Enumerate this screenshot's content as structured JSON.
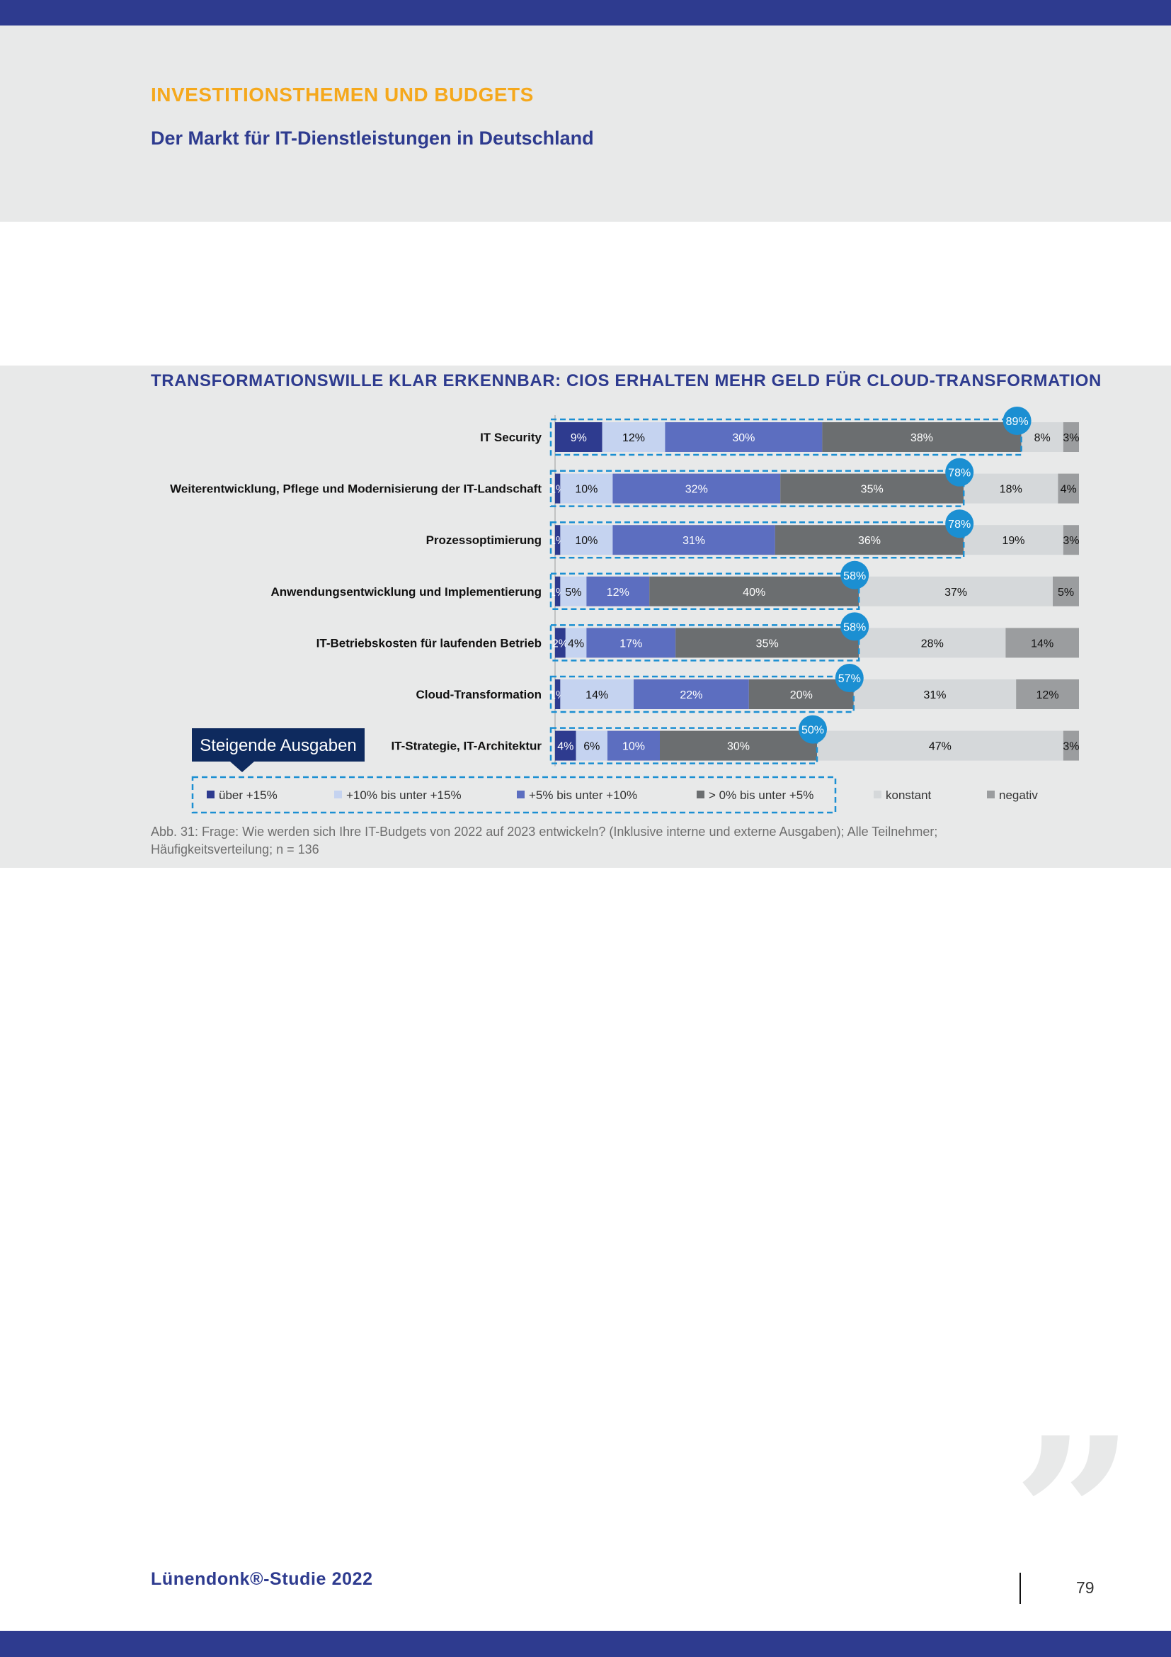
{
  "header": {
    "kicker": "INVESTITIONSTHEMEN UND BUDGETS",
    "subtitle": "Der Markt für IT-Dienstleistungen in Deutschland"
  },
  "figure": {
    "caption": "Abb. 31: Frage: Wie werden sich Ihre IT-Budgets von 2022 auf 2023 entwickeln? (Inklusive interne und externe Ausgaben); Alle Teilnehmer; Häufigkeitsverteilung; n = 136",
    "callout": "Steigende Ausgaben"
  },
  "footer": {
    "brand": "Lünendonk®-Studie 2022",
    "page_number": "79"
  },
  "colors": {
    "brand_blue": "#2e3b8f",
    "accent_orange": "#f5a81c",
    "badge_blue": "#1b8fd2",
    "callout_navy": "#0e2a5e"
  },
  "chart_data": {
    "type": "bar",
    "orientation": "horizontal-stacked-100",
    "title": "TRANSFORMATIONSWILLE KLAR ERKENNBAR: CIOS ERHALTEN MEHR GELD FÜR CLOUD-TRANSFORMATION",
    "categories": [
      "IT Security",
      "Weiterentwicklung, Pflege und Modernisierung der IT-Landschaft",
      "Prozessoptimierung",
      "Anwendungsentwicklung und Implementierung",
      "IT-Betriebskosten für laufenden Betrieb",
      "Cloud-Transformation",
      "IT-Strategie, IT-Architektur"
    ],
    "series": [
      {
        "name": "über +15%",
        "color": "#2e3b8f",
        "text_color": "#ffffff",
        "values": [
          9,
          1,
          1,
          1,
          2,
          1,
          4
        ]
      },
      {
        "name": "+10% bis unter +15%",
        "color": "#c5d3f0",
        "text_color": "#111111",
        "values": [
          12,
          10,
          10,
          5,
          4,
          14,
          6
        ]
      },
      {
        "name": "+5% bis unter +10%",
        "color": "#5c6ec0",
        "text_color": "#ffffff",
        "values": [
          30,
          32,
          31,
          12,
          17,
          22,
          10
        ]
      },
      {
        "name": "> 0% bis unter +5%",
        "color": "#6b6e70",
        "text_color": "#ffffff",
        "values": [
          38,
          35,
          36,
          40,
          35,
          20,
          30
        ]
      },
      {
        "name": "konstant",
        "color": "#d5d8da",
        "text_color": "#111111",
        "values": [
          8,
          18,
          19,
          37,
          28,
          31,
          47
        ]
      },
      {
        "name": "negativ",
        "color": "#9b9d9f",
        "text_color": "#111111",
        "values": [
          3,
          4,
          3,
          5,
          14,
          12,
          3
        ]
      }
    ],
    "increase_totals": [
      "89%",
      "78%",
      "78%",
      "58%",
      "58%",
      "57%",
      "50%"
    ],
    "xlim": [
      0,
      100
    ],
    "legend_position": "bottom"
  }
}
